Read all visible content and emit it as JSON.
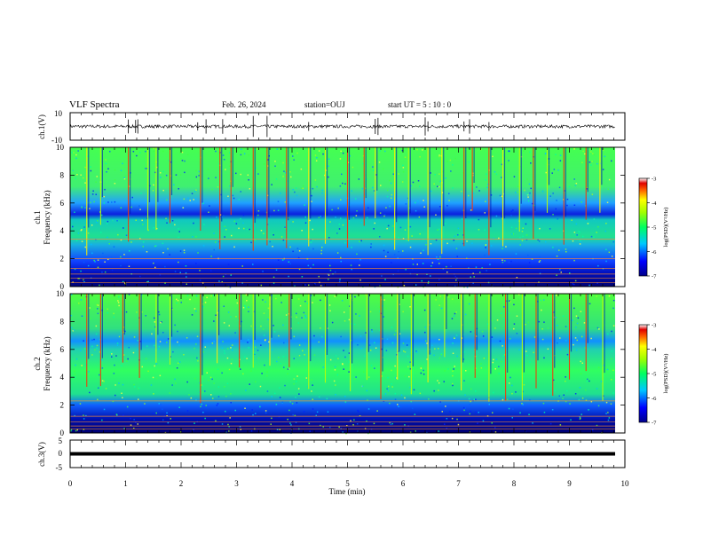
{
  "header": {
    "title": "VLF Spectra",
    "date": "Feb. 26, 2024",
    "station": "station=OUJ",
    "start": "start  UT  =   5  : 10 : 0"
  },
  "chart_data": [
    {
      "type": "line",
      "panel": "ch1-waveform",
      "ylabel": "ch.1(V)",
      "ylim": [
        -10,
        10
      ],
      "yticks": [
        "10",
        "-10"
      ],
      "xlim": [
        0,
        10
      ],
      "baseline": 0,
      "noise_amplitude": 1.2,
      "spikes_min": [
        1.05,
        1.18,
        1.22,
        2.3,
        2.45,
        2.75,
        3.3,
        3.55,
        4.3,
        5.5,
        5.55,
        6.4,
        6.45,
        7.1,
        7.2,
        7.55
      ]
    },
    {
      "type": "heatmap",
      "panel": "ch1-spectrogram",
      "ylabel_line1": "ch.1",
      "ylabel_line2": "Frequency (kHz)",
      "ylim": [
        0,
        10
      ],
      "yticks": [
        "0",
        "2",
        "4",
        "6",
        "8",
        "10"
      ],
      "xlim": [
        0,
        10
      ],
      "colorbar": {
        "label": "log(PSD)(V²/Hz)",
        "range": [
          -7,
          -3
        ],
        "ticks": [
          "-3",
          "-4",
          "-5",
          "-6",
          "-7"
        ]
      },
      "band_lines_khz": [
        3.4,
        2.0,
        1.3,
        0.9,
        0.6,
        0.3
      ],
      "sferic_times_min": [
        0.3,
        0.55,
        1.05,
        1.4,
        1.55,
        1.8,
        2.35,
        2.7,
        2.9,
        3.3,
        3.55,
        3.9,
        4.3,
        4.6,
        5.0,
        5.3,
        5.5,
        5.85,
        6.1,
        6.45,
        6.7,
        7.1,
        7.25,
        7.55,
        7.8,
        8.1,
        8.35,
        8.6,
        8.9,
        9.3,
        9.55
      ]
    },
    {
      "type": "heatmap",
      "panel": "ch2-spectrogram",
      "ylabel_line1": "ch.2",
      "ylabel_line2": "Frequency (kHz)",
      "ylim": [
        0,
        10
      ],
      "yticks": [
        "0",
        "2",
        "4",
        "6",
        "8",
        "10"
      ],
      "xlim": [
        0,
        10
      ],
      "colorbar": {
        "label": "log(PSD)(V²/Hz)",
        "range": [
          -7,
          -3
        ],
        "ticks": [
          "-3",
          "-4",
          "-5",
          "-6",
          "-7"
        ]
      },
      "band_lines_khz": [
        2.3,
        1.2,
        0.8,
        0.5,
        0.3
      ],
      "sferic_times_min": [
        0.3,
        0.55,
        0.95,
        1.25,
        1.55,
        1.8,
        2.35,
        2.65,
        3.05,
        3.3,
        3.6,
        3.95,
        4.3,
        4.6,
        5.05,
        5.35,
        5.6,
        5.9,
        6.15,
        6.45,
        6.75,
        7.05,
        7.3,
        7.55,
        7.85,
        8.15,
        8.4,
        8.7,
        9.0,
        9.3,
        9.6
      ]
    },
    {
      "type": "line",
      "panel": "ch3-waveform",
      "ylabel": "ch.3(V)",
      "ylim": [
        -5,
        5
      ],
      "yticks": [
        "5",
        "0",
        "-5"
      ],
      "xlim": [
        0,
        10
      ],
      "xticks": [
        "0",
        "1",
        "2",
        "3",
        "4",
        "5",
        "6",
        "7",
        "8",
        "9",
        "10"
      ],
      "xlabel": "Time (min)",
      "level": 0
    }
  ]
}
